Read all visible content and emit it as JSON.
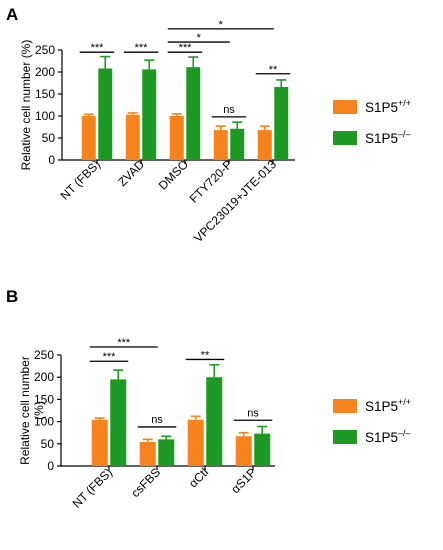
{
  "chart_data": [
    {
      "type": "bar",
      "panel_label": "A",
      "ylabel": "Relative cell number (%)",
      "ylim": [
        0,
        250
      ],
      "yticks": [
        0,
        50,
        100,
        150,
        200,
        250
      ],
      "categories": [
        "NT (FBS)",
        "ZVAD",
        "DMSO",
        "FTY720-P",
        "VPC23019+JTE-013"
      ],
      "series": [
        {
          "name": "S1P5+/+",
          "name_base": "S1P5",
          "name_sup": "+/+",
          "color": "#f7831e",
          "values": [
            100,
            103,
            100,
            68,
            68
          ],
          "errors": [
            4,
            4,
            5,
            9,
            9
          ]
        },
        {
          "name": "S1P5–/–",
          "name_base": "S1P5",
          "name_sup": "–/–",
          "color": "#1e9a24",
          "values": [
            208,
            206,
            211,
            71,
            166
          ],
          "errors": [
            27,
            21,
            23,
            15,
            16
          ]
        }
      ],
      "annotations": [
        {
          "text": "***",
          "from": [
            0,
            0
          ],
          "to": [
            0,
            1
          ],
          "y": 245
        },
        {
          "text": "***",
          "from": [
            1,
            0
          ],
          "to": [
            1,
            1
          ],
          "y": 245
        },
        {
          "text": "***",
          "from": [
            2,
            0
          ],
          "to": [
            2,
            1
          ],
          "y": 245
        },
        {
          "text": "*",
          "from": [
            2,
            0
          ],
          "to": [
            3,
            0
          ],
          "y": 268
        },
        {
          "text": "*",
          "from": [
            2,
            0
          ],
          "to": [
            4,
            0
          ],
          "y": 298
        },
        {
          "text": "ns",
          "from": [
            3,
            0
          ],
          "to": [
            3,
            1
          ],
          "y": 98
        },
        {
          "text": "**",
          "from": [
            4,
            0
          ],
          "to": [
            4,
            1
          ],
          "y": 196
        }
      ],
      "legend_position": "right"
    },
    {
      "type": "bar",
      "panel_label": "B",
      "ylabel": "Relative cell number (%)",
      "ylim": [
        0,
        250
      ],
      "yticks": [
        0,
        50,
        100,
        150,
        200,
        250
      ],
      "categories": [
        "NT (FBS)",
        "csFBS",
        "αCtl",
        "αS1P"
      ],
      "series": [
        {
          "name": "S1P5+/+",
          "name_base": "S1P5",
          "name_sup": "+/+",
          "color": "#f7831e",
          "values": [
            104,
            54,
            104,
            67
          ],
          "errors": [
            4,
            6,
            8,
            8
          ]
        },
        {
          "name": "S1P5–/–",
          "name_base": "S1P5",
          "name_sup": "–/–",
          "color": "#1e9a24",
          "values": [
            195,
            60,
            200,
            73
          ],
          "errors": [
            21,
            7,
            28,
            16
          ]
        }
      ],
      "annotations": [
        {
          "text": "***",
          "from": [
            0,
            0
          ],
          "to": [
            0,
            1
          ],
          "y": 236
        },
        {
          "text": "***",
          "from": [
            0,
            0
          ],
          "to": [
            1,
            0
          ],
          "y": 268
        },
        {
          "text": "ns",
          "from": [
            1,
            0
          ],
          "to": [
            1,
            1
          ],
          "y": 88
        },
        {
          "text": "**",
          "from": [
            2,
            0
          ],
          "to": [
            2,
            1
          ],
          "y": 240
        },
        {
          "text": "ns",
          "from": [
            3,
            0
          ],
          "to": [
            3,
            1
          ],
          "y": 103
        }
      ],
      "legend_position": "right"
    }
  ]
}
